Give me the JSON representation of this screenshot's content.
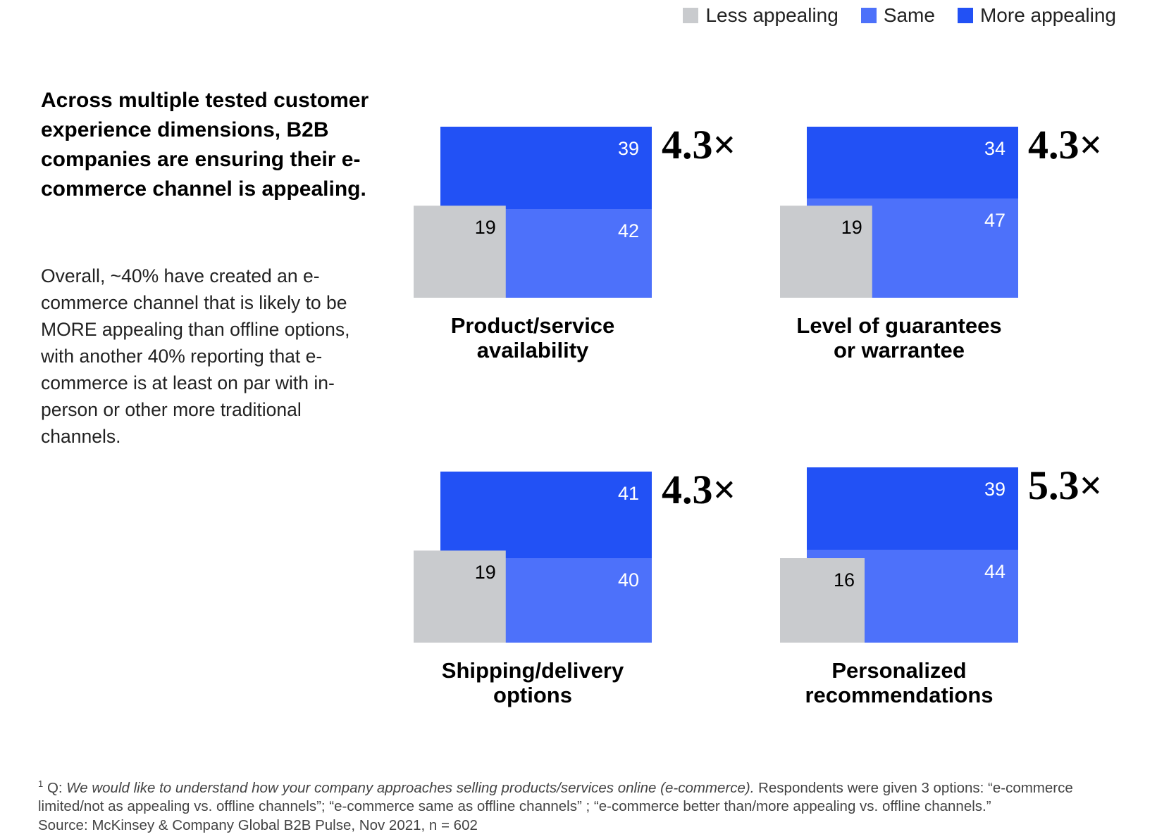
{
  "legend": [
    {
      "label": "Less appealing",
      "color": "#c9cbce"
    },
    {
      "label": "Same",
      "color": "#4d71fa"
    },
    {
      "label": "More appealing",
      "color": "#2251f5"
    }
  ],
  "headline": "Across multiple tested customer experience dimensions, B2B companies are ensuring their e-commerce channel is appealing.",
  "body": "Overall, ~40% have created an e-commerce channel that is likely to be MORE appealing than offline options, with another 40% reporting that e-commerce is at least on par with in-person or other more traditional channels.",
  "chart_data": [
    {
      "type": "bar",
      "title": [
        "Product/service",
        "availability"
      ],
      "less": 19,
      "same": 42,
      "more": 39,
      "multiplier": "4.3×"
    },
    {
      "type": "bar",
      "title": [
        "Level of guarantees",
        "or warrantee"
      ],
      "less": 19,
      "same": 47,
      "more": 34,
      "multiplier": "4.3×"
    },
    {
      "type": "bar",
      "title": [
        "Shipping/delivery",
        "options"
      ],
      "less": 19,
      "same": 40,
      "more": 41,
      "multiplier": "4.3×"
    },
    {
      "type": "bar",
      "title": [
        "Personalized",
        "recommendations"
      ],
      "less": 16,
      "same": 44,
      "more": 39,
      "multiplier": "5.3×"
    }
  ],
  "footnote": {
    "marker": "1",
    "prefix": "Q: ",
    "question": "We would like to understand how your company approaches selling products/services online (e-commerce).",
    "text": " Respondents were given 3 options: “e-commerce limited/not as appealing vs. offline channels”; “e-commerce same as offline channels” ; “e-commerce better than/more appealing vs. offline channels.”",
    "source": "Source: McKinsey & Company Global B2B Pulse, Nov 2021, n = 602"
  }
}
